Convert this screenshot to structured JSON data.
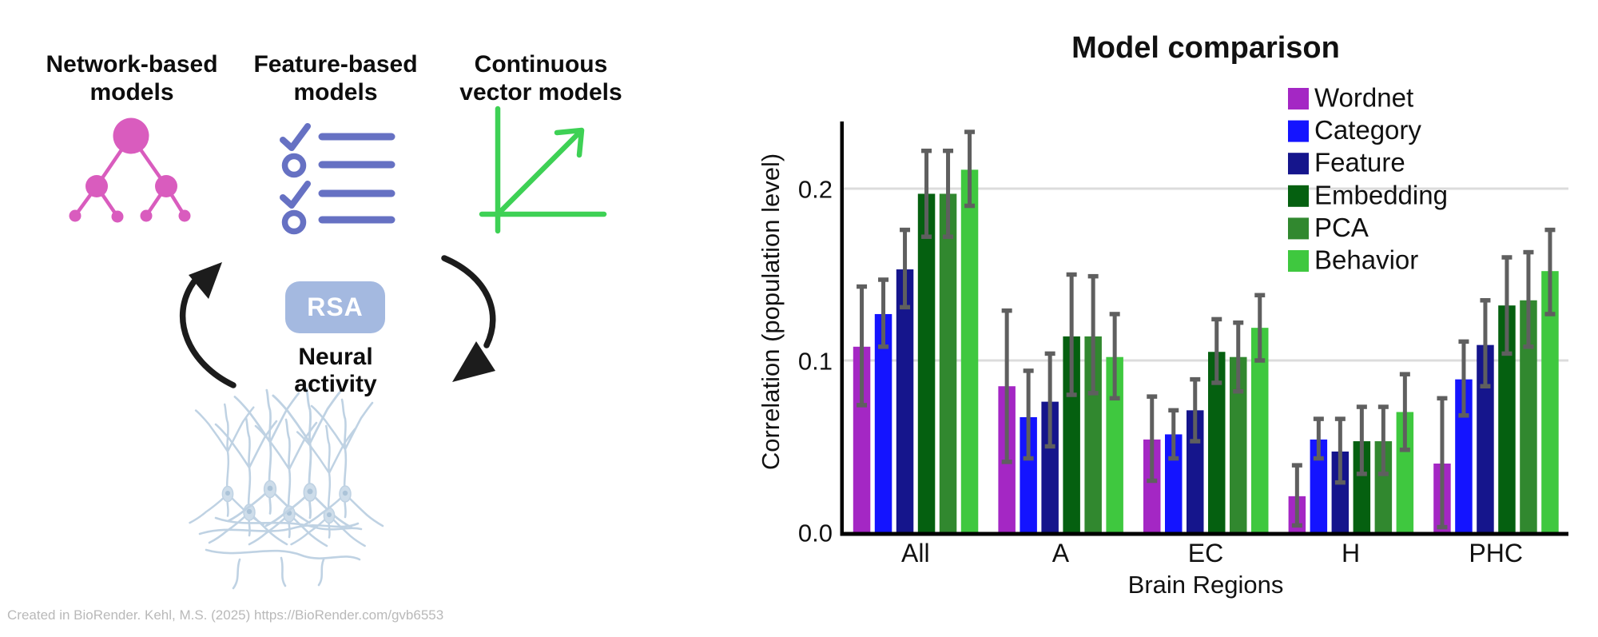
{
  "diagram": {
    "headings": [
      {
        "text": "Network-based\nmodels"
      },
      {
        "text": "Feature-based\nmodels"
      },
      {
        "text": "Continuous\nvector models"
      }
    ],
    "rsa_label": "RSA",
    "neural_activity_label": "Neural\nactivity",
    "credit": "Created in BioRender. Kehl, M.S. (2025) https://BioRender.com/gvb6553",
    "icons": {
      "tree": "hierarchy-tree-icon",
      "checklist": "feature-checklist-icon",
      "vector": "vector-axes-arrow-icon",
      "arrow_up": "cycle-arrow-up-icon",
      "arrow_down": "cycle-arrow-down-icon",
      "neurons": "neurons-illustration"
    },
    "colors": {
      "tree": "#d95cbe",
      "checklist": "#6671c3",
      "vector": "#3ed155",
      "rsa_box": "#a4b9e0",
      "rsa_text": "#ffffff",
      "arrow": "#1c1c1c",
      "neuron_line": "#b5cbdf",
      "neuron_fill": "#c6d8e7",
      "credit_text": "#b9b9b9"
    }
  },
  "chart_data": {
    "type": "bar",
    "title": "Model comparison",
    "xlabel": "Brain Regions",
    "ylabel": "Correlation (population level)",
    "categories": [
      "All",
      "A",
      "EC",
      "H",
      "PHC"
    ],
    "yticks": [
      0,
      0.1,
      0.2
    ],
    "ylim": [
      0,
      0.24
    ],
    "grid": "horizontal gridlines at 0.1 and 0.2",
    "gridline_color": "#dcdcdc",
    "legend_position": "upper-right",
    "error_bar_color": "#5f5f5f",
    "series": [
      {
        "name": "Wordnet",
        "color": "#a427c4",
        "values": [
          0.108,
          0.085,
          0.054,
          0.021,
          0.04
        ],
        "err_low": [
          0.074,
          0.041,
          0.03,
          0.004,
          0.003
        ],
        "err_high": [
          0.143,
          0.129,
          0.079,
          0.039,
          0.078
        ]
      },
      {
        "name": "Category",
        "color": "#1414ff",
        "values": [
          0.127,
          0.067,
          0.057,
          0.054,
          0.089
        ],
        "err_low": [
          0.108,
          0.043,
          0.043,
          0.043,
          0.068
        ],
        "err_high": [
          0.147,
          0.094,
          0.071,
          0.066,
          0.111
        ]
      },
      {
        "name": "Feature",
        "color": "#15158c",
        "values": [
          0.153,
          0.076,
          0.071,
          0.047,
          0.109
        ],
        "err_low": [
          0.131,
          0.05,
          0.053,
          0.029,
          0.085
        ],
        "err_high": [
          0.176,
          0.104,
          0.089,
          0.066,
          0.135
        ]
      },
      {
        "name": "Embedding",
        "color": "#056010",
        "values": [
          0.197,
          0.114,
          0.105,
          0.053,
          0.132
        ],
        "err_low": [
          0.172,
          0.08,
          0.087,
          0.034,
          0.104
        ],
        "err_high": [
          0.222,
          0.15,
          0.124,
          0.073,
          0.16
        ]
      },
      {
        "name": "PCA",
        "color": "#31882f",
        "values": [
          0.197,
          0.114,
          0.102,
          0.053,
          0.135
        ],
        "err_low": [
          0.172,
          0.081,
          0.082,
          0.034,
          0.108
        ],
        "err_high": [
          0.222,
          0.149,
          0.122,
          0.073,
          0.163
        ]
      },
      {
        "name": "Behavior",
        "color": "#3fc83f",
        "values": [
          0.211,
          0.102,
          0.119,
          0.07,
          0.152
        ],
        "err_low": [
          0.19,
          0.078,
          0.1,
          0.048,
          0.127
        ],
        "err_high": [
          0.233,
          0.127,
          0.138,
          0.092,
          0.176
        ]
      }
    ]
  }
}
